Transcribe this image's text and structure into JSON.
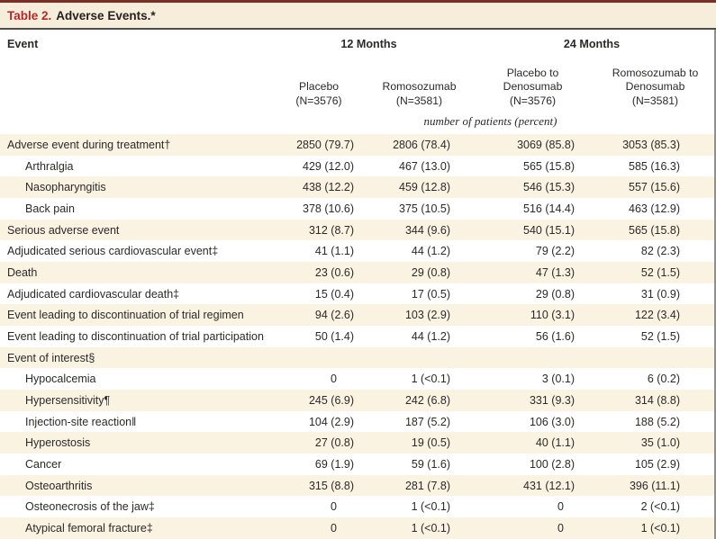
{
  "title": {
    "label": "Table 2.",
    "text": "Adverse Events.*"
  },
  "colors": {
    "top_border": "#7b2d26",
    "title_background": "#f6eedb",
    "title_accent_red": "#b5282c",
    "header_rule": "#4d4d4f",
    "right_rule": "#8f8f8f",
    "row_stripe": "#faf3e2",
    "text": "#2b2a28"
  },
  "table": {
    "event_header": "Event",
    "groups": [
      {
        "label": "12 Months"
      },
      {
        "label": "24 Months"
      }
    ],
    "columns": [
      "Placebo\n(N=3576)",
      "Romosozumab\n(N=3581)",
      "Placebo to\nDenosumab\n(N=3576)",
      "Romosozumab to\nDenosumab\n(N=3581)"
    ],
    "units_note": "number of patients (percent)",
    "rows": [
      {
        "label": "Adverse event during treatment†",
        "indent": false,
        "values": [
          "2850 (79.7)",
          "2806 (78.4)",
          "3069 (85.8)",
          "3053 (85.3)"
        ]
      },
      {
        "label": "Arthralgia",
        "indent": true,
        "values": [
          "429 (12.0)",
          "467 (13.0)",
          "565 (15.8)",
          "585 (16.3)"
        ]
      },
      {
        "label": "Nasopharyngitis",
        "indent": true,
        "values": [
          "438 (12.2)",
          "459 (12.8)",
          "546 (15.3)",
          "557 (15.6)"
        ]
      },
      {
        "label": "Back pain",
        "indent": true,
        "values": [
          "378 (10.6)",
          "375 (10.5)",
          "516 (14.4)",
          "463 (12.9)"
        ]
      },
      {
        "label": "Serious adverse event",
        "indent": false,
        "values": [
          "312 (8.7)",
          "344 (9.6)",
          "540 (15.1)",
          "565 (15.8)"
        ]
      },
      {
        "label": "Adjudicated serious cardiovascular event‡",
        "indent": false,
        "values": [
          "41 (1.1)",
          "44 (1.2)",
          "79 (2.2)",
          "82 (2.3)"
        ]
      },
      {
        "label": "Death",
        "indent": false,
        "values": [
          "23 (0.6)",
          "29 (0.8)",
          "47 (1.3)",
          "52 (1.5)"
        ]
      },
      {
        "label": "Adjudicated cardiovascular death‡",
        "indent": false,
        "values": [
          "15 (0.4)",
          "17 (0.5)",
          "29 (0.8)",
          "31 (0.9)"
        ]
      },
      {
        "label": "Event leading to discontinuation of trial regimen",
        "indent": false,
        "values": [
          "94 (2.6)",
          "103 (2.9)",
          "110 (3.1)",
          "122 (3.4)"
        ]
      },
      {
        "label": "Event leading to discontinuation of trial participation",
        "indent": false,
        "values": [
          "50 (1.4)",
          "44 (1.2)",
          "56 (1.6)",
          "52 (1.5)"
        ]
      },
      {
        "label": "Event of interest§",
        "indent": false,
        "values": [
          "",
          "",
          "",
          ""
        ]
      },
      {
        "label": "Hypocalcemia",
        "indent": true,
        "values": [
          "0",
          "1 (<0.1)",
          "3 (0.1)",
          "6 (0.2)"
        ]
      },
      {
        "label": "Hypersensitivity¶",
        "indent": true,
        "values": [
          "245 (6.9)",
          "242 (6.8)",
          "331 (9.3)",
          "314 (8.8)"
        ]
      },
      {
        "label": "Injection-site reaction‖",
        "indent": true,
        "values": [
          "104 (2.9)",
          "187 (5.2)",
          "106 (3.0)",
          "188 (5.2)"
        ]
      },
      {
        "label": "Hyperostosis",
        "indent": true,
        "values": [
          "27 (0.8)",
          "19 (0.5)",
          "40 (1.1)",
          "35 (1.0)"
        ]
      },
      {
        "label": "Cancer",
        "indent": true,
        "values": [
          "69 (1.9)",
          "59 (1.6)",
          "100 (2.8)",
          "105 (2.9)"
        ]
      },
      {
        "label": "Osteoarthritis",
        "indent": true,
        "values": [
          "315 (8.8)",
          "281 (7.8)",
          "431 (12.1)",
          "396 (11.1)"
        ]
      },
      {
        "label": "Osteonecrosis of the jaw‡",
        "indent": true,
        "values": [
          "0",
          "1 (<0.1)",
          "0",
          "2 (<0.1)"
        ]
      },
      {
        "label": "Atypical femoral fracture‡",
        "indent": true,
        "values": [
          "0",
          "1 (<0.1)",
          "0",
          "1 (<0.1)"
        ]
      }
    ]
  }
}
